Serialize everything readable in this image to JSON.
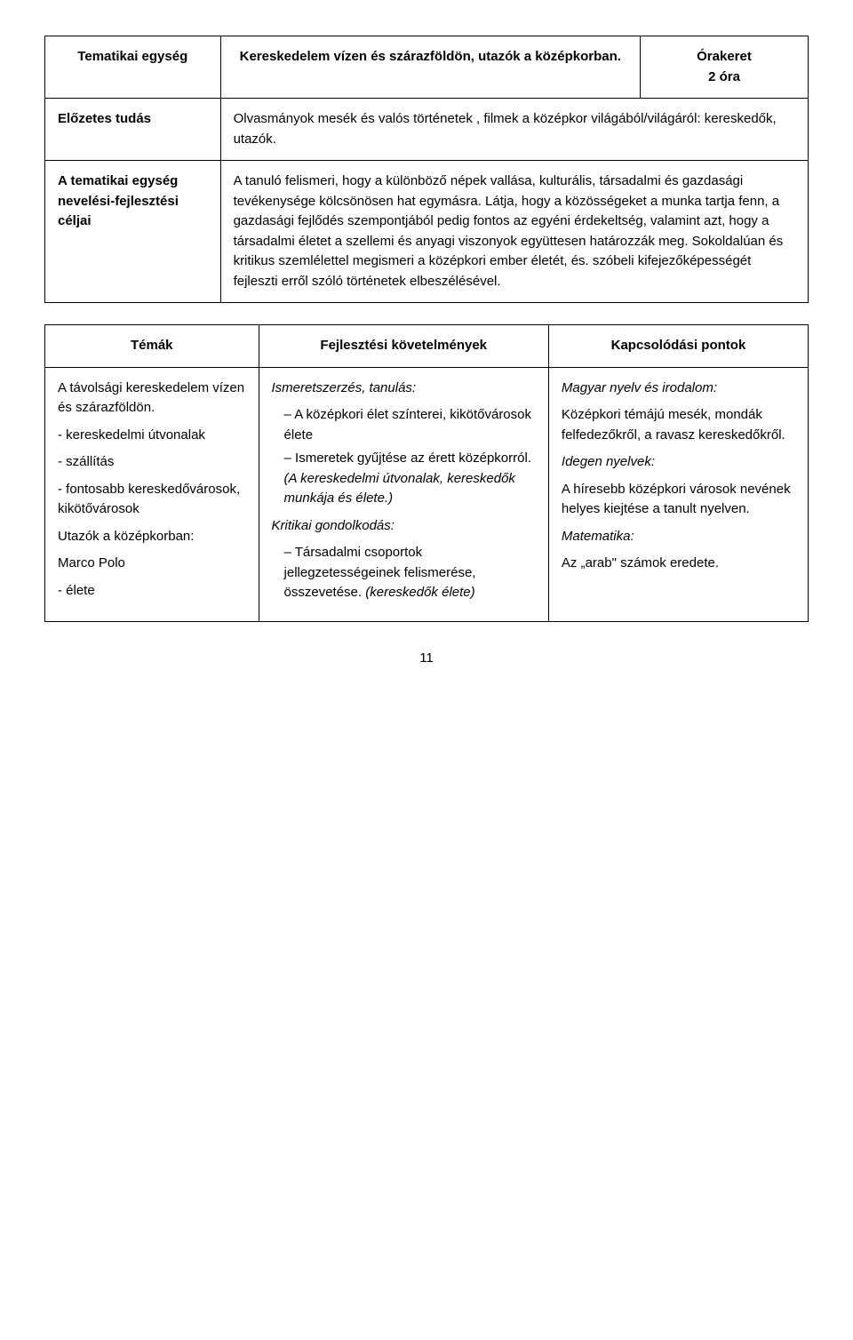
{
  "t1": {
    "r0c0": "Tematikai egység",
    "r0c1": "Kereskedelem vízen és szárazföldön, utazók a középkorban.",
    "r0c2a": "Órakeret",
    "r0c2b": "2 óra",
    "r1c0": "Előzetes tudás",
    "r1c1": "Olvasmányok mesék és valós történetek , filmek a középkor világából/világáról: kereskedők, utazók.",
    "r2c0": "A tematikai egység nevelési-fejlesztési céljai",
    "r2c1": "A tanuló felismeri, hogy a különböző népek vallása, kulturális, társadalmi és gazdasági tevékenysége kölcsönösen hat egymásra. Látja, hogy a közösségeket a munka tartja fenn, a gazdasági fejlődés szempontjából pedig fontos az egyéni érdekeltség, valamint azt, hogy a társadalmi életet a szellemi és anyagi viszonyok együttesen határozzák meg. Sokoldalúan és kritikus szemlélettel megismeri a középkori ember életét, és. szóbeli kifejezőképességét fejleszti erről szóló történetek elbeszélésével."
  },
  "t2": {
    "h0": "Témák",
    "h1": "Fejlesztési követelmények",
    "h2": "Kapcsolódási pontok",
    "c0p1": "A távolsági kereskedelem vízen és szárazföldön.",
    "c0p2": "- kereskedelmi útvonalak",
    "c0p3": "- szállítás",
    "c0p4": "- fontosabb kereskedővárosok, kikötővárosok",
    "c0p5": "Utazók a középkorban:",
    "c0p6": "Marco Polo",
    "c0p7": "- élete",
    "c1h1": "Ismeretszerzés, tanulás:",
    "c1l1": "A középkori élet színterei, kikötővárosok élete",
    "c1l2a": "Ismeretek gyűjtése az érett középkorról. ",
    "c1l2b": "(A kereskedelmi útvonalak, kereskedők munkája és élete.)",
    "c1h2": "Kritikai gondolkodás:",
    "c1l3a": "Társadalmi csoportok jellegzetességeinek felismerése, összevetése. ",
    "c1l3b": "(kereskedők élete)",
    "c2h1": "Magyar nyelv és irodalom:",
    "c2p1": "Középkori témájú mesék, mondák felfedezőkről, a ravasz kereskedőkről.",
    "c2h2": "Idegen nyelvek:",
    "c2p2": "A híresebb középkori városok nevének helyes kiejtése a tanult nyelven.",
    "c2h3": "Matematika:",
    "c2p3": "Az „arab\" számok eredete."
  },
  "pageNum": "11"
}
